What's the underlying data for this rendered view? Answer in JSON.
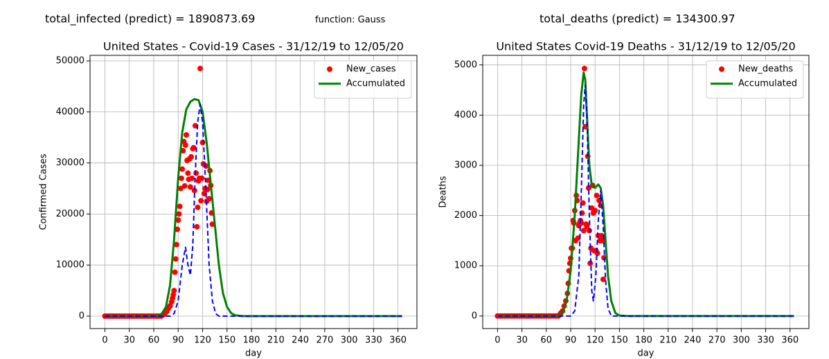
{
  "chart_data": [
    {
      "type": "line",
      "header": "total_infected (predict) = 1890873.69",
      "function_label": "function: Gauss",
      "title": "United States - Covid-19 Cases - 31/12/19 to 12/05/20",
      "x_label": "day",
      "y_label": "Confirmed Cases",
      "xlim": [
        -18.25,
        383.25
      ],
      "xticks": [
        0,
        30,
        60,
        90,
        120,
        150,
        180,
        210,
        240,
        270,
        300,
        330,
        360
      ],
      "ylim": [
        -2440,
        51080
      ],
      "yticks": [
        0,
        10000,
        20000,
        30000,
        40000,
        50000
      ],
      "grid": true,
      "legend": "upper-right",
      "series": [
        {
          "name": "New_cases",
          "type": "scatter",
          "color": "#ff0000",
          "x": [
            0,
            3,
            6,
            9,
            12,
            15,
            18,
            21,
            24,
            27,
            30,
            33,
            36,
            39,
            42,
            45,
            48,
            51,
            54,
            57,
            60,
            63,
            66,
            69,
            70,
            72,
            74,
            76,
            78,
            80,
            82,
            83,
            84,
            85,
            86,
            87,
            88,
            89,
            90,
            91,
            92,
            93,
            94,
            95,
            96,
            97,
            98,
            99,
            100,
            101,
            102,
            103,
            104,
            105,
            106,
            107,
            108,
            109,
            110,
            111,
            112,
            113,
            114,
            115,
            116,
            117,
            118,
            119,
            120,
            121,
            122,
            123,
            124,
            125,
            126,
            127,
            128,
            129,
            130,
            131,
            132
          ],
          "values": [
            0,
            0,
            0,
            0,
            0,
            0,
            0,
            0,
            0,
            0,
            0,
            0,
            0,
            0,
            0,
            0,
            0,
            0,
            0,
            0,
            0,
            0,
            0,
            0,
            100,
            300,
            600,
            900,
            1500,
            2000,
            2800,
            3500,
            4200,
            5000,
            8600,
            11200,
            14000,
            17000,
            18800,
            20000,
            21500,
            25000,
            27000,
            28800,
            32400,
            34200,
            25500,
            33500,
            35500,
            30500,
            28000,
            26800,
            30800,
            25300,
            31200,
            27000,
            32800,
            33000,
            24600,
            37300,
            28000,
            17500,
            21300,
            26500,
            27000,
            48500,
            22600,
            27000,
            34000,
            29800,
            24000,
            25000,
            29400,
            22500,
            24800,
            26600,
            23000,
            28500,
            25600,
            20200,
            18000
          ]
        },
        {
          "name": "Accumulated",
          "type": "line",
          "color": "#008000",
          "width": 3,
          "x": [
            0,
            60,
            65,
            70,
            75,
            80,
            85,
            90,
            95,
            100,
            105,
            110,
            115,
            120,
            125,
            130,
            135,
            140,
            145,
            150,
            155,
            160,
            170,
            180,
            365
          ],
          "values": [
            0,
            0,
            100,
            500,
            1800,
            6000,
            15000,
            27000,
            36000,
            40500,
            42000,
            42500,
            42300,
            40000,
            34000,
            26000,
            18000,
            10000,
            4500,
            1800,
            600,
            150,
            0,
            0,
            0
          ]
        },
        {
          "type": "line",
          "dashed": true,
          "color": "#0000ff",
          "width": 2,
          "x": [
            0,
            80,
            85,
            90,
            95,
            99,
            102,
            105,
            108,
            111,
            114,
            117,
            120,
            124,
            128,
            132,
            136,
            140,
            365
          ],
          "values": [
            0,
            0,
            500,
            3000,
            10000,
            13500,
            10000,
            8000,
            14000,
            28000,
            38000,
            41500,
            38000,
            25000,
            10000,
            3000,
            500,
            0,
            0
          ]
        }
      ]
    },
    {
      "type": "line",
      "header": "total_deaths (predict) = 134300.97",
      "title": "United States Covid-19 Deaths - 31/12/19 to 12/05/20",
      "x_label": "day",
      "y_label": "Deaths",
      "xlim": [
        -18.25,
        383.25
      ],
      "xticks": [
        0,
        30,
        60,
        90,
        120,
        150,
        180,
        210,
        240,
        270,
        300,
        330,
        360
      ],
      "ylim": [
        -250,
        5190
      ],
      "yticks": [
        0,
        1000,
        2000,
        3000,
        4000,
        5000
      ],
      "grid": true,
      "legend": "upper-right",
      "series": [
        {
          "name": "New_deaths",
          "type": "scatter",
          "color": "#ff0000",
          "x": [
            0,
            3,
            6,
            9,
            12,
            15,
            18,
            21,
            24,
            27,
            30,
            33,
            36,
            39,
            42,
            45,
            48,
            51,
            54,
            57,
            60,
            63,
            66,
            69,
            72,
            75,
            76,
            78,
            80,
            82,
            84,
            86,
            87,
            88,
            89,
            90,
            91,
            92,
            93,
            94,
            95,
            96,
            97,
            98,
            99,
            100,
            101,
            102,
            103,
            104,
            105,
            106,
            107,
            108,
            109,
            110,
            111,
            112,
            113,
            114,
            115,
            116,
            117,
            118,
            119,
            120,
            121,
            122,
            123,
            124,
            125,
            126,
            127,
            128,
            129,
            130,
            131
          ],
          "values": [
            0,
            0,
            0,
            0,
            0,
            0,
            0,
            0,
            0,
            0,
            0,
            0,
            0,
            0,
            0,
            0,
            0,
            0,
            0,
            0,
            0,
            0,
            0,
            0,
            0,
            0,
            20,
            60,
            100,
            200,
            300,
            450,
            650,
            900,
            1050,
            1150,
            1350,
            1350,
            1900,
            1850,
            2100,
            1500,
            2400,
            2300,
            1550,
            1800,
            1850,
            1900,
            1850,
            2050,
            2250,
            1700,
            4928,
            3770,
            1830,
            1780,
            3180,
            2550,
            1700,
            1050,
            1350,
            2150,
            2600,
            2050,
            1300,
            2100,
            1300,
            2400,
            1250,
            1600,
            2300,
            1500,
            2200,
            1600,
            1500,
            730,
            1160
          ]
        },
        {
          "name": "Accumulated",
          "type": "line",
          "color": "#008000",
          "width": 3,
          "x": [
            0,
            70,
            75,
            80,
            85,
            90,
            95,
            100,
            103,
            106,
            108,
            110,
            113,
            116,
            120,
            124,
            127,
            130,
            133,
            136,
            140,
            145,
            150,
            160,
            365
          ],
          "values": [
            0,
            0,
            10,
            60,
            300,
            900,
            2000,
            3500,
            4400,
            4850,
            4700,
            4000,
            3000,
            2600,
            2550,
            2620,
            2550,
            2200,
            1500,
            800,
            300,
            60,
            10,
            0,
            0
          ]
        },
        {
          "type": "line",
          "dashed": true,
          "color": "#0000ff",
          "width": 2,
          "x": [
            0,
            90,
            95,
            100,
            103,
            106,
            108,
            110,
            113,
            116,
            118,
            121,
            124,
            127,
            130,
            133,
            136,
            140,
            365
          ],
          "values": [
            0,
            0,
            100,
            800,
            2400,
            4200,
            4600,
            4000,
            2000,
            500,
            300,
            800,
            1900,
            2500,
            1800,
            700,
            150,
            0,
            0
          ]
        }
      ]
    }
  ]
}
